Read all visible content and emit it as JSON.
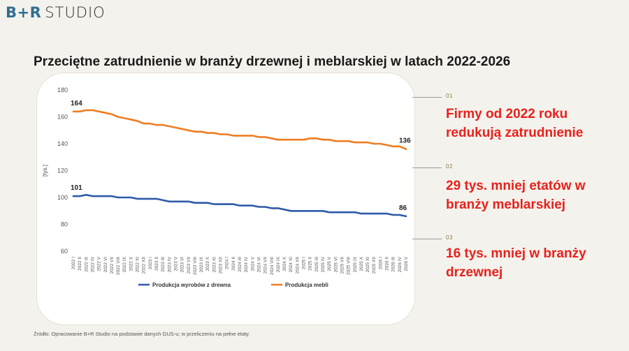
{
  "logo": {
    "brand": "B+R",
    "studio": "STUDIO"
  },
  "title": "Przeciętne zatrudnienie w branży drzewnej i meblarskiej w latach 2022-2026",
  "points": [
    {
      "num": "01",
      "text": "Firmy od 2022 roku redukują zatrudnienie"
    },
    {
      "num": "02",
      "text": "29 tys. mniej etatów w branży meblarskiej"
    },
    {
      "num": "03",
      "text": "16 tys. mniej w branży drzewnej"
    }
  ],
  "source": "Źródło: Opracowanie B+R Studio na podstawie danych GUS-u; w przeliczeniu na pełne etaty.",
  "colors": {
    "wood": "#2e5aa8",
    "furniture": "#ee7d22",
    "accent": "#e8211d"
  },
  "chart_data": {
    "type": "line",
    "ylabel": "[tys.]",
    "ylim": [
      60,
      180
    ],
    "yticks": [
      60,
      80,
      100,
      120,
      140,
      160,
      180
    ],
    "categories": [
      "2022 I",
      "2022 II",
      "2022 III",
      "2022 IV",
      "2022 V",
      "2022 VI",
      "2022 VII",
      "2022 VIII",
      "2022 IX",
      "2022 X",
      "2022 XI",
      "2022 XII",
      "2023 I",
      "2023 II",
      "2023 III",
      "2023 IV",
      "2023 V",
      "2023 VI",
      "2023 VII",
      "2023 VIII",
      "2023 IX",
      "2023 X",
      "2023 XI",
      "2023 XII",
      "2024 I",
      "2024 II",
      "2024 III",
      "2024 IV",
      "2024 V",
      "2024 VI",
      "2024 VII",
      "2024 VIII",
      "2024 IX",
      "2024 X",
      "2024 XI",
      "2024 XII",
      "2025 I",
      "2025 II",
      "2025 III",
      "2025 IV",
      "2025 V",
      "2025 VI",
      "2025 VII",
      "2025 VIII",
      "2025 IX",
      "2025 X",
      "2025 XI",
      "2025 XII",
      "2026 I",
      "2026 II",
      "2026 III",
      "2026 IV",
      "2026 V"
    ],
    "series": [
      {
        "name": "Produkcja wyrobów z drewna",
        "color": "#2e5aa8",
        "values": [
          101,
          101,
          102,
          101,
          101,
          101,
          101,
          100,
          100,
          100,
          99,
          99,
          99,
          99,
          98,
          97,
          97,
          97,
          97,
          96,
          96,
          96,
          95,
          95,
          95,
          95,
          94,
          94,
          94,
          93,
          93,
          92,
          92,
          91,
          90,
          90,
          90,
          90,
          90,
          90,
          89,
          89,
          89,
          89,
          89,
          88,
          88,
          88,
          88,
          88,
          87,
          87,
          86
        ],
        "labels": {
          "first": "101",
          "last": "86"
        }
      },
      {
        "name": "Produkcja mebli",
        "color": "#ee7d22",
        "values": [
          164,
          164,
          165,
          165,
          164,
          163,
          162,
          160,
          159,
          158,
          157,
          155,
          155,
          154,
          154,
          153,
          152,
          151,
          150,
          149,
          149,
          148,
          148,
          147,
          147,
          146,
          146,
          146,
          146,
          145,
          145,
          144,
          143,
          143,
          143,
          143,
          143,
          144,
          144,
          143,
          143,
          142,
          142,
          142,
          141,
          141,
          141,
          140,
          140,
          139,
          138,
          138,
          136
        ],
        "labels": {
          "first": "164",
          "last": "136"
        }
      }
    ],
    "legend": "bottom"
  }
}
